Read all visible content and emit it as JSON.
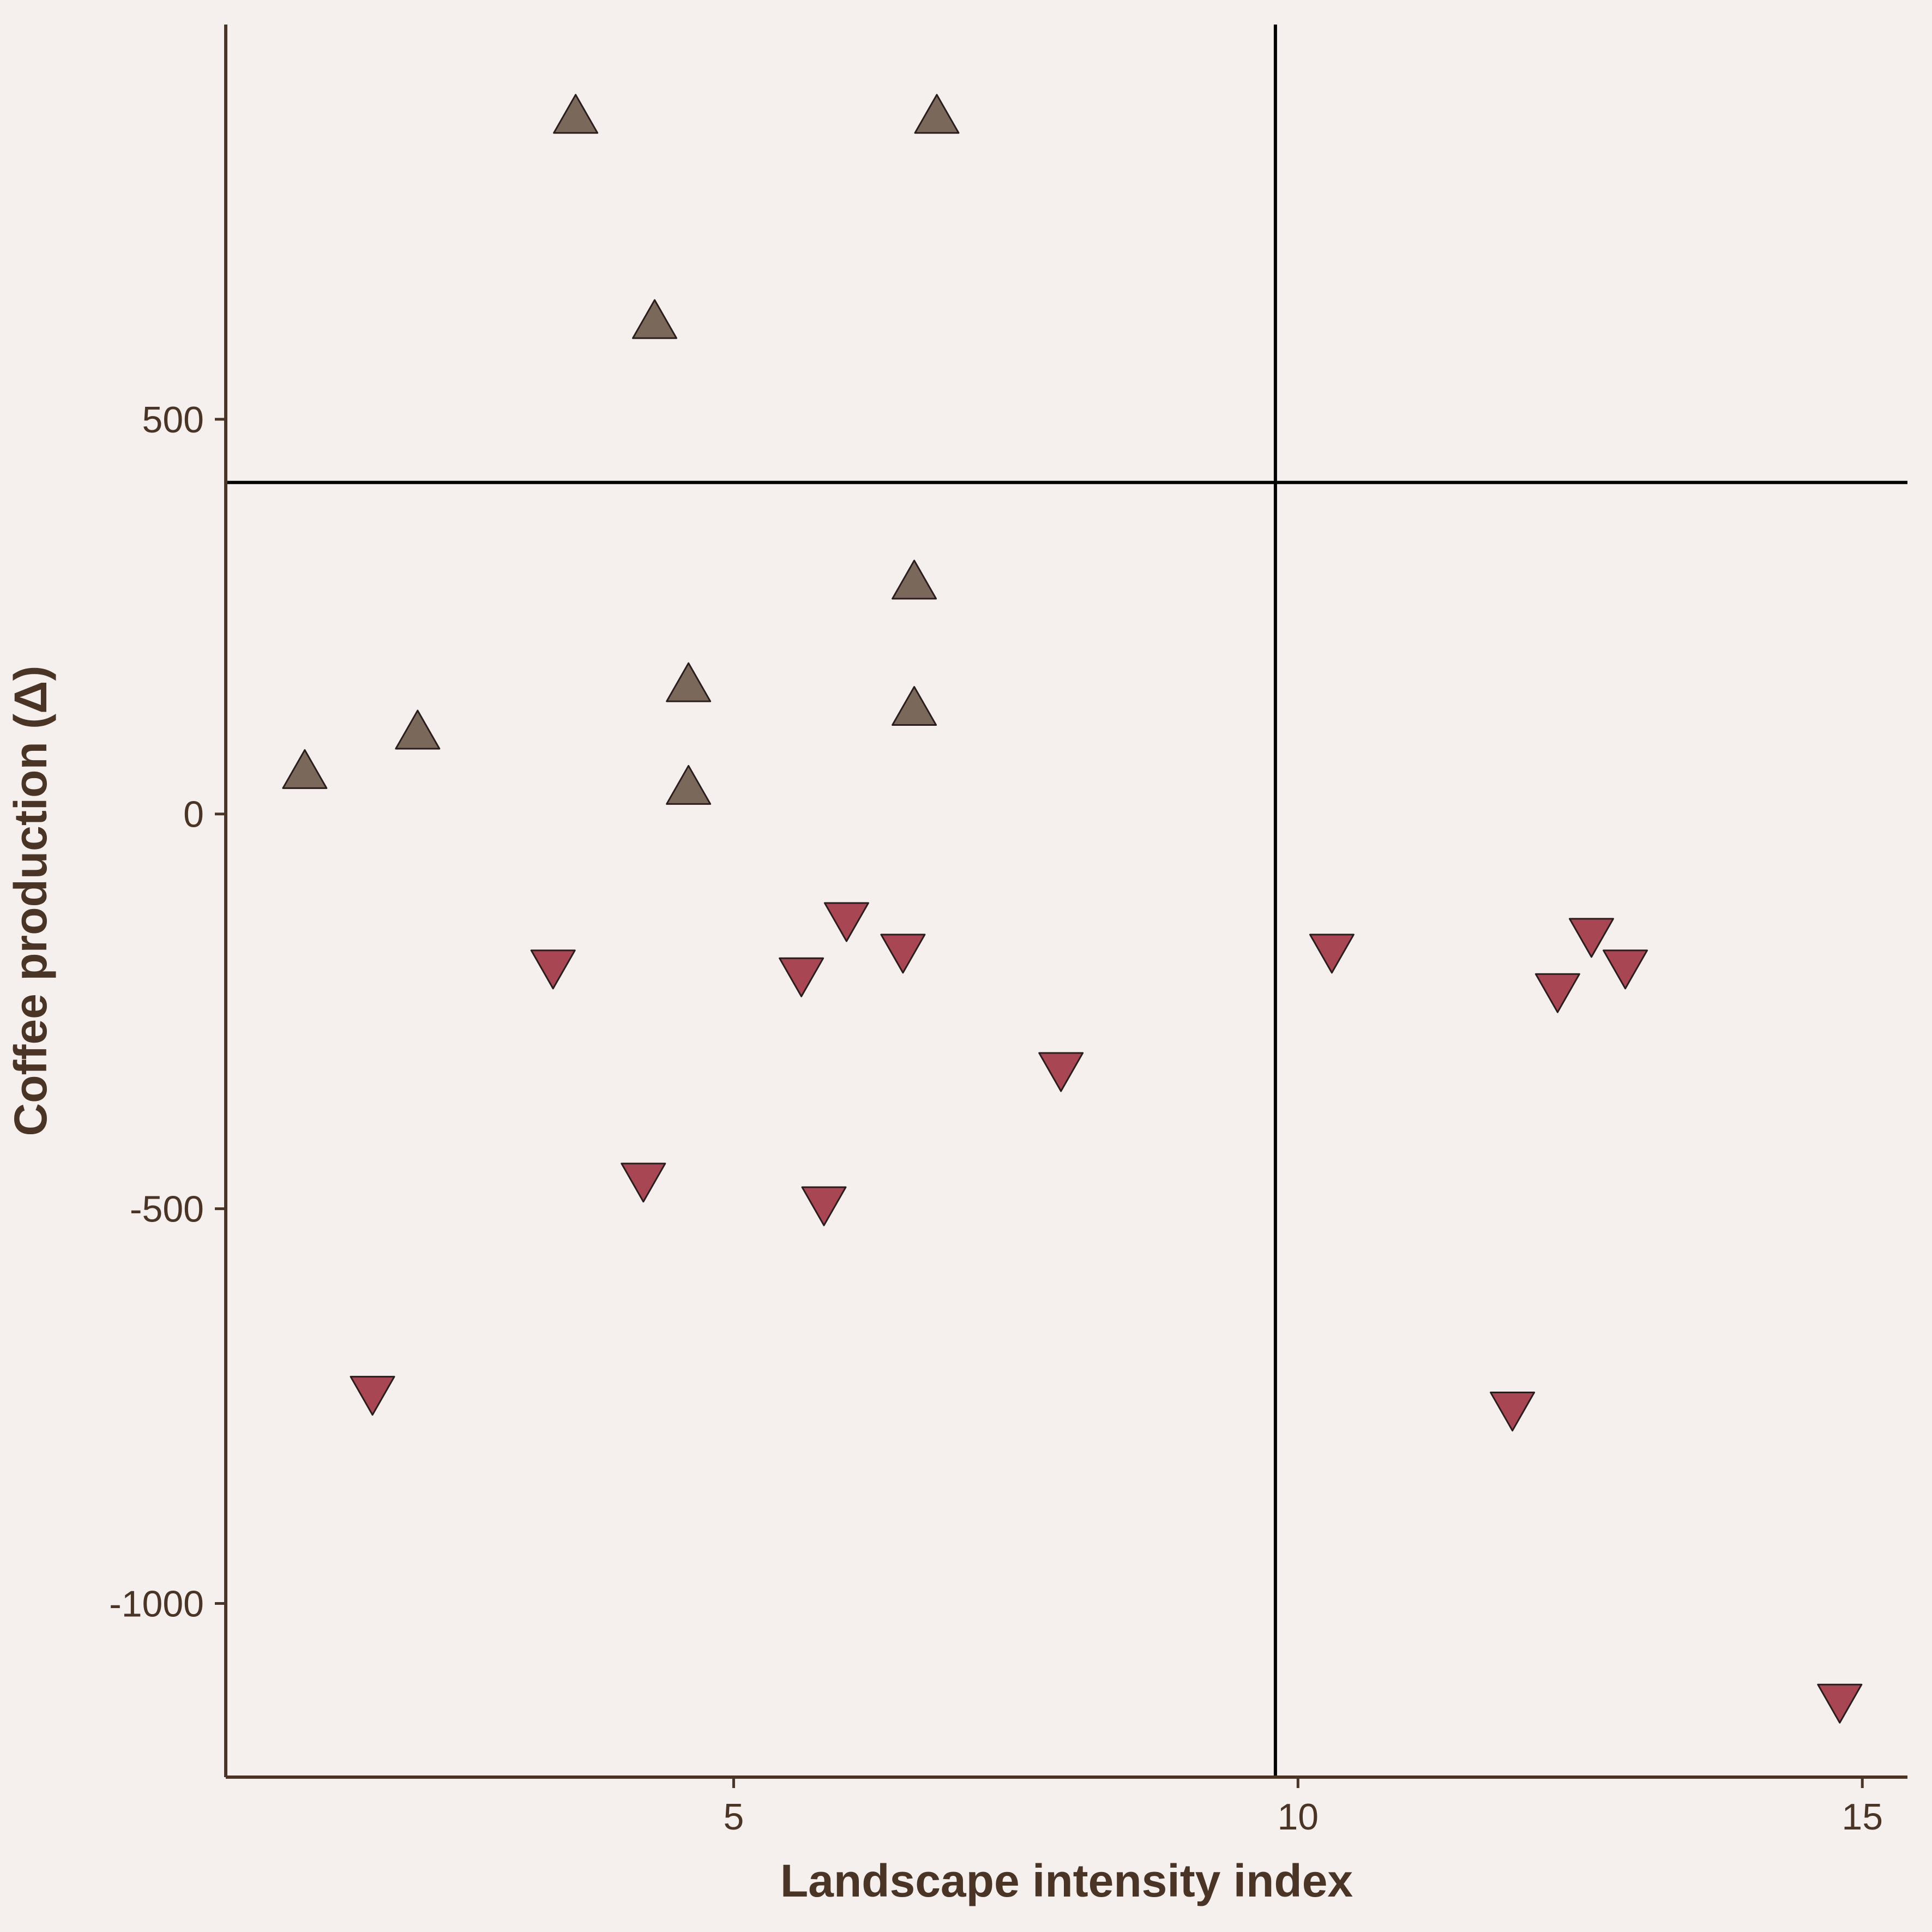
{
  "chart_data": {
    "type": "scatter",
    "title": "",
    "xlabel": "Landscape intensity index",
    "ylabel": "Coffee production (Δ)",
    "xlim": [
      0.5,
      15.4
    ],
    "ylim": [
      -1220,
      1000
    ],
    "x_ticks": [
      5,
      10,
      15
    ],
    "x_tick_labels": [
      "5",
      "10",
      "15"
    ],
    "y_ticks": [
      500,
      0,
      -500,
      -1000
    ],
    "y_tick_labels": [
      "500",
      "0",
      "-500",
      "-1000"
    ],
    "reference_lines": {
      "vertical_x": 9.8,
      "horizontal_y": 420
    },
    "grid": false,
    "legend": "none",
    "colors": {
      "background": "#f5f0ed",
      "axis": "#4a3426",
      "reference_line": "#000000",
      "positive_fill": "#7a685a",
      "negative_fill": "#a84653",
      "marker_outline": "#2b1d1d"
    },
    "series": [
      {
        "marker": "triangle-up",
        "points": [
          {
            "x": 1.2,
            "y": 50
          },
          {
            "x": 2.2,
            "y": 100
          },
          {
            "x": 3.6,
            "y": 880
          },
          {
            "x": 4.3,
            "y": 620
          },
          {
            "x": 4.6,
            "y": 30
          },
          {
            "x": 4.6,
            "y": 160
          },
          {
            "x": 6.6,
            "y": 290
          },
          {
            "x": 6.6,
            "y": 130
          },
          {
            "x": 6.8,
            "y": 880
          }
        ]
      },
      {
        "marker": "triangle-down",
        "points": [
          {
            "x": 1.8,
            "y": -730
          },
          {
            "x": 3.4,
            "y": -190
          },
          {
            "x": 4.2,
            "y": -460
          },
          {
            "x": 5.6,
            "y": -200
          },
          {
            "x": 5.8,
            "y": -490
          },
          {
            "x": 6.0,
            "y": -130
          },
          {
            "x": 6.5,
            "y": -170
          },
          {
            "x": 7.9,
            "y": -320
          },
          {
            "x": 10.3,
            "y": -170
          },
          {
            "x": 11.9,
            "y": -750
          },
          {
            "x": 12.3,
            "y": -220
          },
          {
            "x": 12.6,
            "y": -150
          },
          {
            "x": 12.9,
            "y": -190
          },
          {
            "x": 14.8,
            "y": -1120
          }
        ]
      }
    ]
  }
}
